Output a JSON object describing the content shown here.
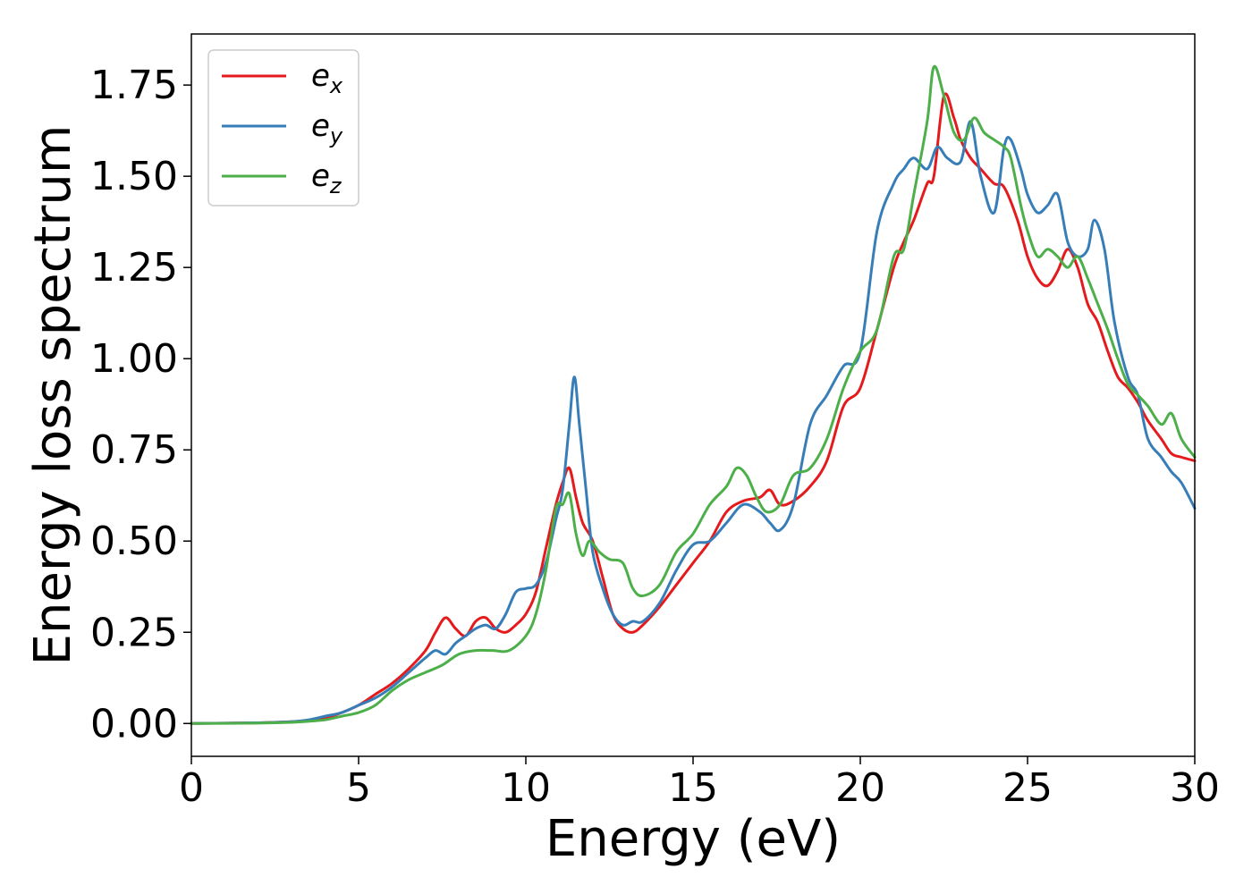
{
  "chart_data": {
    "type": "line",
    "title": "",
    "xlabel": "Energy (eV)",
    "ylabel": "Energy loss spectrum",
    "xlim": [
      0,
      30
    ],
    "ylim": [
      -0.09,
      1.89
    ],
    "xticks": [
      0,
      5,
      10,
      15,
      20,
      25,
      30
    ],
    "xtick_labels": [
      "0",
      "5",
      "10",
      "15",
      "20",
      "25",
      "30"
    ],
    "yticks": [
      0,
      0.25,
      0.5,
      0.75,
      1.0,
      1.25,
      1.5,
      1.75
    ],
    "ytick_labels": [
      "0.00",
      "0.25",
      "0.50",
      "0.75",
      "1.00",
      "1.25",
      "1.50",
      "1.75"
    ],
    "grid": false,
    "legend_position": "top-left",
    "series": [
      {
        "name": "e",
        "subscript": "x",
        "color": "#e41a1c",
        "x": [
          0,
          2,
          3,
          3.5,
          4,
          4.5,
          5,
          5.5,
          6,
          6.5,
          7,
          7.3,
          7.6,
          7.9,
          8.2,
          8.5,
          8.8,
          9.1,
          9.4,
          9.7,
          10,
          10.3,
          10.6,
          10.9,
          11.1,
          11.3,
          11.5,
          11.7,
          12,
          12.3,
          12.6,
          12.9,
          13.2,
          13.5,
          14,
          14.5,
          15,
          15.5,
          16,
          16.5,
          17,
          17.3,
          17.6,
          18,
          18.5,
          19,
          19.5,
          20,
          20.5,
          21,
          21.3,
          21.6,
          22,
          22.2,
          22.5,
          22.8,
          23,
          23.3,
          23.6,
          24,
          24.3,
          24.7,
          25,
          25.3,
          25.6,
          25.9,
          26.2,
          26.5,
          26.8,
          27.1,
          27.4,
          27.7,
          28,
          28.3,
          28.6,
          29,
          29.3,
          29.6,
          30
        ],
        "y": [
          0,
          0.002,
          0.005,
          0.008,
          0.015,
          0.03,
          0.05,
          0.08,
          0.11,
          0.15,
          0.2,
          0.25,
          0.29,
          0.26,
          0.24,
          0.28,
          0.29,
          0.26,
          0.25,
          0.27,
          0.3,
          0.36,
          0.48,
          0.6,
          0.66,
          0.7,
          0.62,
          0.55,
          0.5,
          0.4,
          0.3,
          0.26,
          0.25,
          0.27,
          0.32,
          0.38,
          0.44,
          0.5,
          0.58,
          0.61,
          0.62,
          0.64,
          0.6,
          0.61,
          0.65,
          0.72,
          0.87,
          0.92,
          1.08,
          1.25,
          1.32,
          1.38,
          1.48,
          1.5,
          1.72,
          1.66,
          1.6,
          1.55,
          1.52,
          1.48,
          1.47,
          1.38,
          1.28,
          1.22,
          1.2,
          1.24,
          1.3,
          1.25,
          1.15,
          1.1,
          1.02,
          0.95,
          0.92,
          0.88,
          0.83,
          0.78,
          0.74,
          0.73,
          0.72
        ]
      },
      {
        "name": "e",
        "subscript": "y",
        "color": "#377eb8",
        "x": [
          0,
          2,
          3,
          3.5,
          4,
          4.5,
          5,
          5.5,
          6,
          6.5,
          7,
          7.3,
          7.6,
          7.9,
          8.2,
          8.5,
          8.8,
          9.1,
          9.4,
          9.7,
          10,
          10.3,
          10.6,
          10.9,
          11.1,
          11.3,
          11.45,
          11.6,
          11.8,
          12,
          12.3,
          12.6,
          12.9,
          13.2,
          13.5,
          14,
          14.5,
          15,
          15.5,
          16,
          16.5,
          17,
          17.3,
          17.6,
          18,
          18.5,
          19,
          19.5,
          20,
          20.5,
          21,
          21.3,
          21.6,
          22,
          22.3,
          22.6,
          23,
          23.3,
          23.6,
          24,
          24.3,
          24.5,
          24.8,
          25,
          25.3,
          25.6,
          25.9,
          26.2,
          26.5,
          26.8,
          27,
          27.3,
          27.6,
          28,
          28.3,
          28.6,
          29,
          29.3,
          29.6,
          30
        ],
        "y": [
          0,
          0.002,
          0.005,
          0.01,
          0.02,
          0.03,
          0.05,
          0.07,
          0.1,
          0.14,
          0.18,
          0.2,
          0.19,
          0.22,
          0.24,
          0.26,
          0.27,
          0.26,
          0.3,
          0.36,
          0.37,
          0.38,
          0.44,
          0.56,
          0.64,
          0.82,
          0.95,
          0.82,
          0.64,
          0.47,
          0.37,
          0.3,
          0.27,
          0.28,
          0.28,
          0.33,
          0.42,
          0.49,
          0.5,
          0.55,
          0.6,
          0.58,
          0.55,
          0.53,
          0.6,
          0.82,
          0.9,
          0.98,
          1.02,
          1.35,
          1.48,
          1.52,
          1.55,
          1.52,
          1.58,
          1.55,
          1.54,
          1.65,
          1.5,
          1.4,
          1.58,
          1.6,
          1.52,
          1.45,
          1.4,
          1.42,
          1.45,
          1.32,
          1.28,
          1.3,
          1.38,
          1.3,
          1.1,
          0.95,
          0.9,
          0.78,
          0.73,
          0.69,
          0.66,
          0.59
        ]
      },
      {
        "name": "e",
        "subscript": "z",
        "color": "#4daf4a",
        "x": [
          0,
          2,
          3,
          3.5,
          4,
          4.5,
          5,
          5.5,
          6,
          6.5,
          7,
          7.5,
          8,
          8.5,
          9,
          9.5,
          10,
          10.3,
          10.6,
          10.9,
          11.1,
          11.3,
          11.5,
          11.7,
          11.9,
          12.2,
          12.5,
          12.9,
          13.2,
          13.5,
          14,
          14.5,
          15,
          15.5,
          16,
          16.3,
          16.6,
          16.9,
          17.2,
          17.6,
          18,
          18.5,
          19,
          19.5,
          20,
          20.5,
          21,
          21.3,
          21.6,
          22,
          22.2,
          22.5,
          22.8,
          23.1,
          23.4,
          23.7,
          24,
          24.3,
          24.5,
          24.8,
          25,
          25.3,
          25.6,
          25.9,
          26.2,
          26.5,
          26.8,
          27.1,
          27.4,
          27.7,
          28,
          28.3,
          28.6,
          29,
          29.3,
          29.6,
          30
        ],
        "y": [
          0,
          0.001,
          0.003,
          0.006,
          0.01,
          0.02,
          0.03,
          0.05,
          0.09,
          0.12,
          0.14,
          0.16,
          0.19,
          0.2,
          0.2,
          0.2,
          0.24,
          0.3,
          0.42,
          0.59,
          0.6,
          0.63,
          0.52,
          0.46,
          0.5,
          0.47,
          0.45,
          0.44,
          0.37,
          0.35,
          0.38,
          0.47,
          0.52,
          0.6,
          0.65,
          0.7,
          0.68,
          0.62,
          0.58,
          0.6,
          0.68,
          0.7,
          0.78,
          0.92,
          1.02,
          1.08,
          1.28,
          1.3,
          1.45,
          1.65,
          1.8,
          1.72,
          1.62,
          1.6,
          1.66,
          1.62,
          1.6,
          1.58,
          1.55,
          1.42,
          1.35,
          1.28,
          1.3,
          1.28,
          1.25,
          1.28,
          1.22,
          1.15,
          1.08,
          1.0,
          0.93,
          0.9,
          0.87,
          0.82,
          0.85,
          0.78,
          0.73
        ]
      }
    ]
  }
}
